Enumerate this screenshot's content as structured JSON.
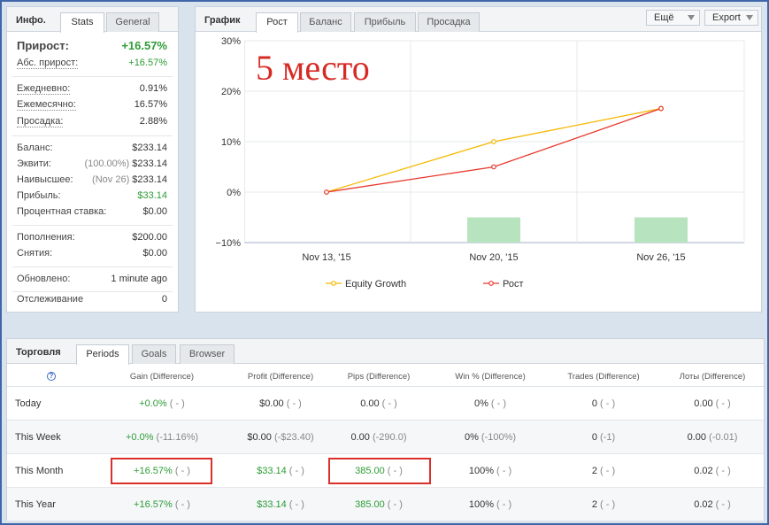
{
  "info": {
    "title": "Инфо.",
    "tabs": [
      "Stats",
      "General"
    ],
    "growth_label": "Прирост:",
    "growth_value": "+16.57%",
    "abs_growth_label": "Абс. прирост:",
    "abs_growth_value": "+16.57%",
    "daily_label": "Ежедневно:",
    "daily_value": "0.91%",
    "monthly_label": "Ежемесячно:",
    "monthly_value": "16.57%",
    "drawdown_label": "Просадка:",
    "drawdown_value": "2.88%",
    "balance_label": "Баланс:",
    "balance_value": "$233.14",
    "equity_label": "Эквити:",
    "equity_note": "(100.00%)",
    "equity_value": "$233.14",
    "highest_label": "Наивысшее:",
    "highest_note": "(Nov 26)",
    "highest_value": "$233.14",
    "profit_label": "Прибыль:",
    "profit_value": "$33.14",
    "interest_label": "Процентная ставка:",
    "interest_value": "$0.00",
    "deposits_label": "Пополнения:",
    "deposits_value": "$200.00",
    "withdrawals_label": "Снятия:",
    "withdrawals_value": "$0.00",
    "updated_label": "Обновлено:",
    "updated_value": "1 minute ago",
    "tracking_label": "Отслеживание",
    "tracking_value": "0"
  },
  "chart_panel": {
    "title": "График",
    "tabs": [
      "Рост",
      "Баланс",
      "Прибыль",
      "Просадка"
    ],
    "more_label": "Ещё",
    "export_label": "Export",
    "overlay_text": "5 место"
  },
  "chart_data": {
    "type": "line",
    "x": [
      "Nov 13, '15",
      "Nov 20, '15",
      "Nov 26, '15"
    ],
    "yticks": [
      "30%",
      "20%",
      "10%",
      "0%",
      "−10%"
    ],
    "ylim": [
      -10,
      30
    ],
    "grid": true,
    "legend": "bottom",
    "series": [
      {
        "name": "Equity Growth",
        "color": "#f5b800",
        "values": [
          0,
          10,
          16.57
        ]
      },
      {
        "name": "Рост",
        "color": "#e8392e",
        "values": [
          0,
          5,
          16.57
        ]
      }
    ],
    "bars": {
      "color": "#b8e3bf",
      "values": [
        5,
        5
      ],
      "positions": [
        1,
        2
      ]
    }
  },
  "trading": {
    "title": "Торговля",
    "tabs": [
      "Periods",
      "Goals",
      "Browser"
    ],
    "help_icon": "?",
    "columns": [
      "Gain (Difference)",
      "Profit (Difference)",
      "Pips (Difference)",
      "Win % (Difference)",
      "Trades (Difference)",
      "Лоты (Difference)"
    ],
    "rows": [
      {
        "label": "Today",
        "gain": "+0.0%",
        "gain_d": "( - )",
        "profit": "$0.00",
        "profit_d": "( - )",
        "pips": "0.00",
        "pips_d": "( - )",
        "win": "0%",
        "win_d": "( - )",
        "trades": "0",
        "trades_d": "( - )",
        "lots": "0.00",
        "lots_d": "( - )"
      },
      {
        "label": "This Week",
        "gain": "+0.0%",
        "gain_d": "(-11.16%)",
        "profit": "$0.00",
        "profit_d": "(-$23.40)",
        "pips": "0.00",
        "pips_d": "(-290.0)",
        "win": "0%",
        "win_d": "(-100%)",
        "trades": "0",
        "trades_d": "(-1)",
        "lots": "0.00",
        "lots_d": "(-0.01)"
      },
      {
        "label": "This Month",
        "gain": "+16.57%",
        "gain_d": "( - )",
        "profit": "$33.14",
        "profit_d": "( - )",
        "pips": "385.00",
        "pips_d": "( - )",
        "win": "100%",
        "win_d": "( - )",
        "trades": "2",
        "trades_d": "( - )",
        "lots": "0.02",
        "lots_d": "( - )"
      },
      {
        "label": "This Year",
        "gain": "+16.57%",
        "gain_d": "( - )",
        "profit": "$33.14",
        "profit_d": "( - )",
        "pips": "385.00",
        "pips_d": "( - )",
        "win": "100%",
        "win_d": "( - )",
        "trades": "2",
        "trades_d": "( - )",
        "lots": "0.02",
        "lots_d": "( - )"
      }
    ]
  }
}
